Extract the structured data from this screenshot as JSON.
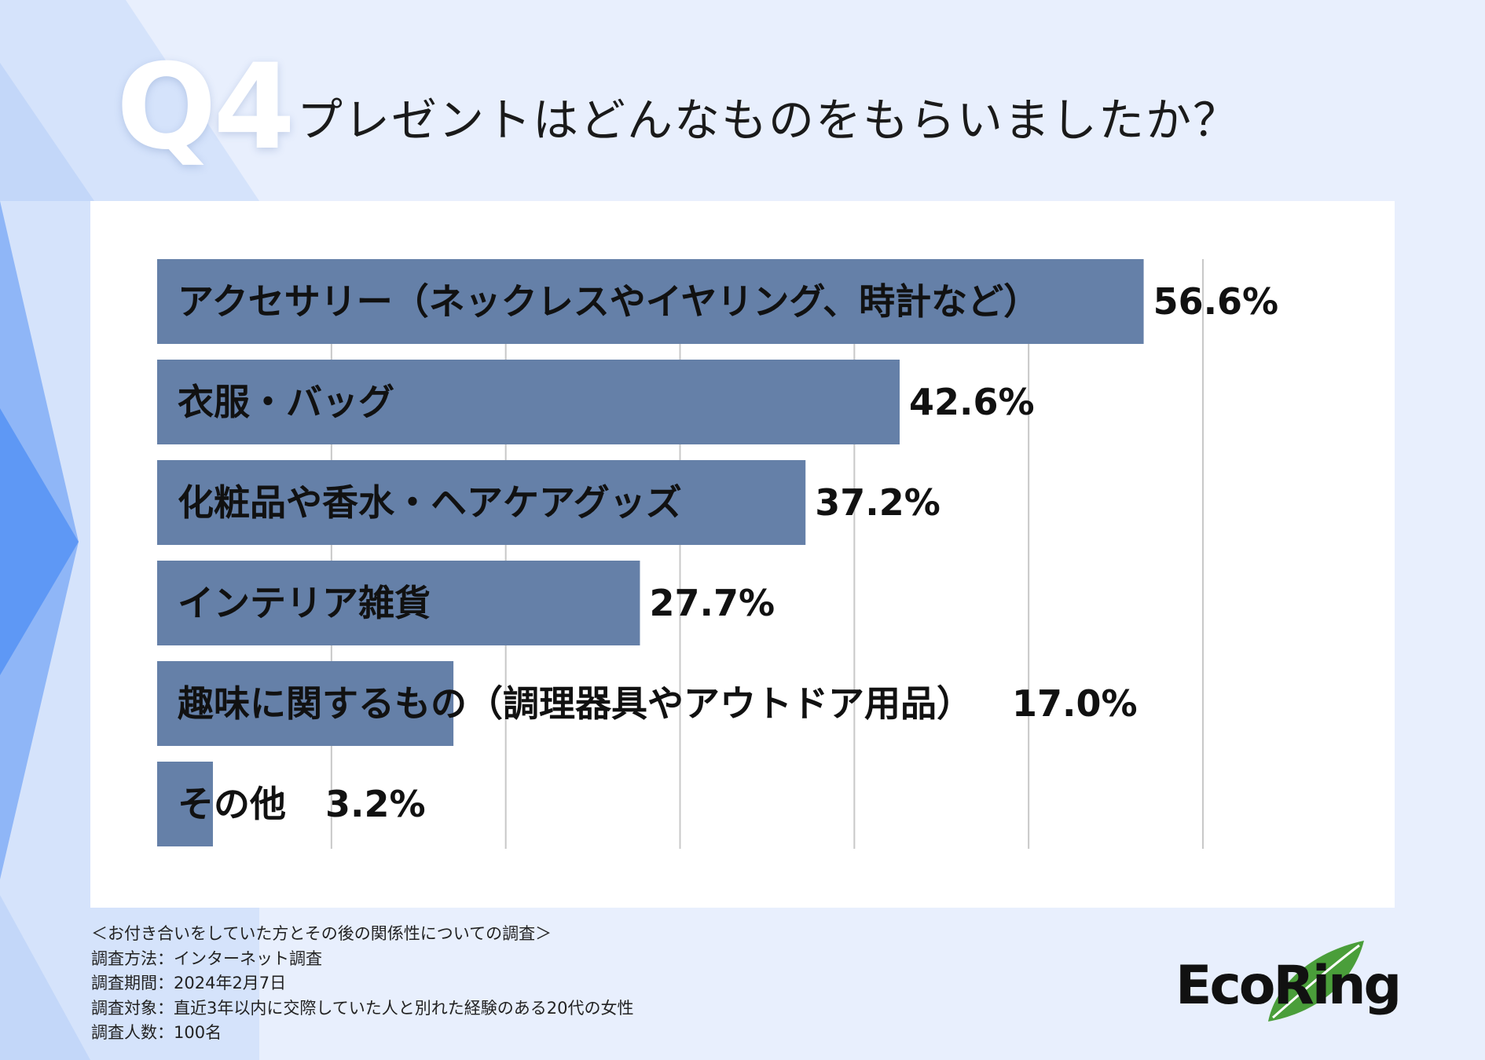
{
  "header": {
    "question_number": "Q4",
    "question_text": "プレゼントはどんなものをもらいましたか？"
  },
  "chart_data": {
    "type": "bar",
    "orientation": "horizontal",
    "categories": [
      "アクセサリー（ネックレスやイヤリング、時計など）",
      "衣服・バッグ",
      "化粧品や香水・ヘアケアグッズ",
      "インテリア雑貨",
      "趣味に関するもの（調理器具やアウトドア用品）",
      "その他"
    ],
    "values": [
      56.6,
      42.6,
      37.2,
      27.7,
      17.0,
      3.2
    ],
    "value_labels": [
      "56.6%",
      "42.6%",
      "37.2%",
      "27.7%",
      "17.0%",
      "3.2%"
    ],
    "unit": "%",
    "xlim": [
      0,
      60
    ],
    "grid": true,
    "legend": "none",
    "bar_color": "#6580a8"
  },
  "notes": {
    "survey_title": "＜お付き合いをしていた方とその後の関係性についての調査＞",
    "method": "調査方法：インターネット調査",
    "period": "調査期間：2024年2月7日",
    "target": "調査対象：直近3年以内に交際していた人と別れた経験のある20代の女性",
    "count": "調査人数：100名"
  },
  "brand": {
    "logo_text": "EcoRing",
    "leaf_color": "#4a9e3a"
  }
}
